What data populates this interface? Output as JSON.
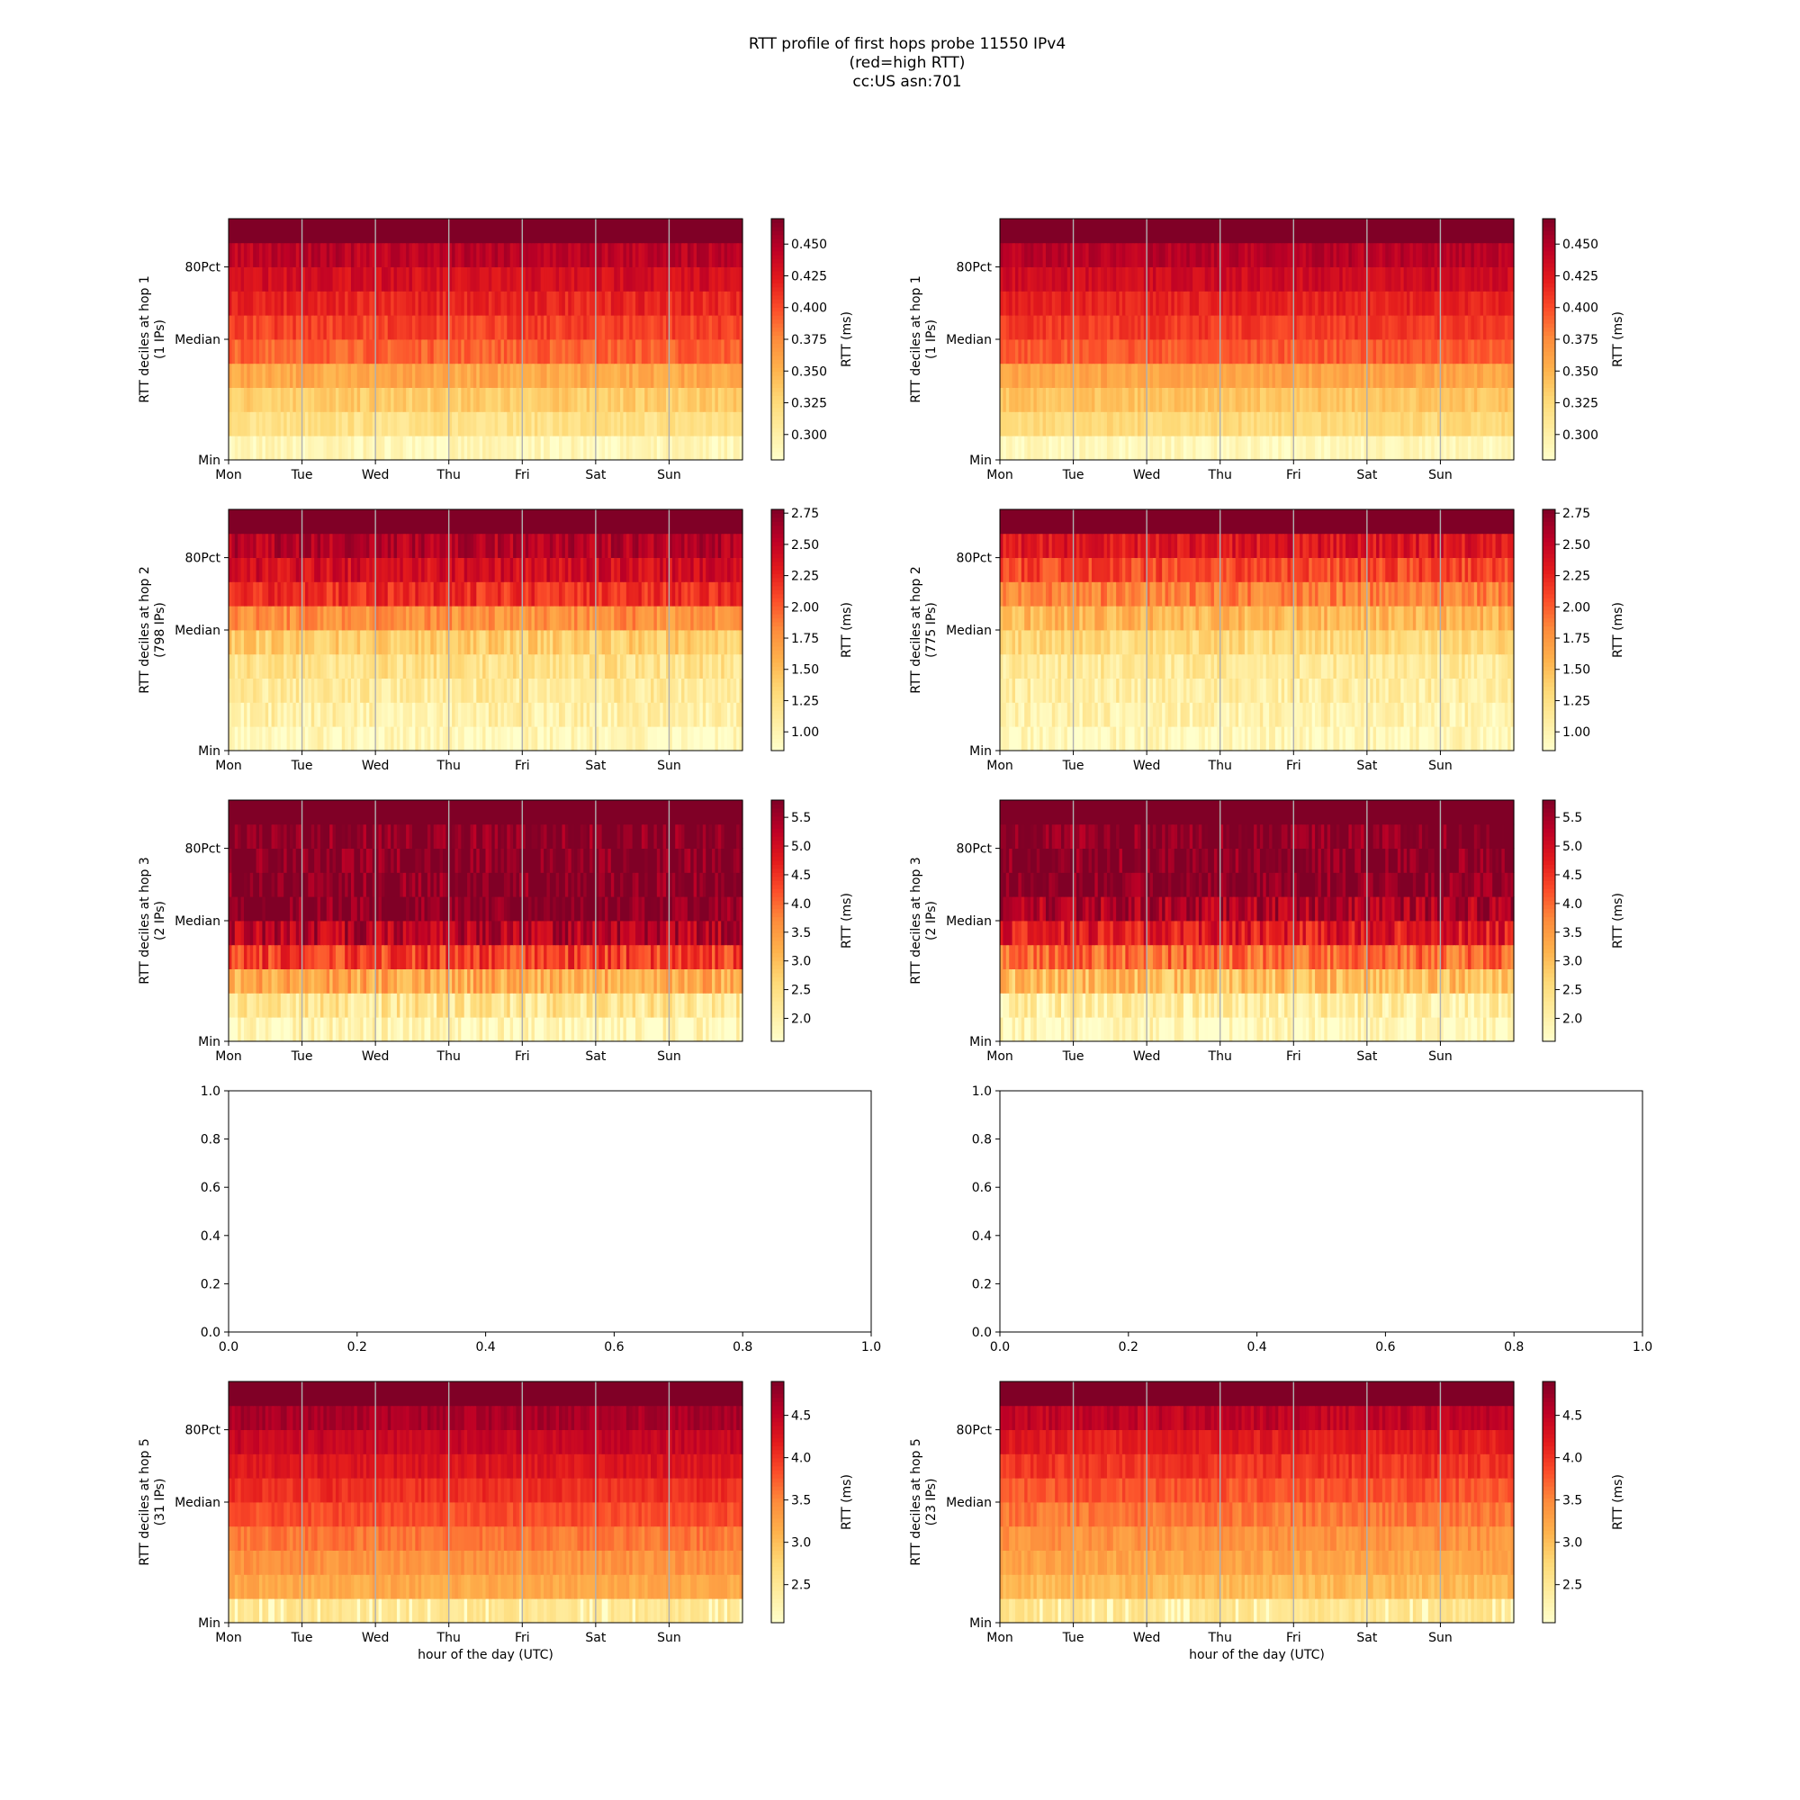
{
  "figure": {
    "title_lines": [
      "RTT profile of first hops probe 11550 IPv4",
      "(red=high RTT)",
      "cc:US asn:701"
    ]
  },
  "chart_data": [
    {
      "type": "heatmap",
      "panel": "hop1-left",
      "ylabel_lines": [
        "RTT deciles at hop 1",
        "(1 IPs)"
      ],
      "yticks": [
        "Min",
        "Median",
        "80Pct"
      ],
      "xticks": [
        "Mon",
        "Tue",
        "Wed",
        "Thu",
        "Fri",
        "Sat",
        "Sun"
      ],
      "xlabel": "",
      "colorbar": {
        "label": "RTT (ms)",
        "min": 0.28,
        "max": 0.47,
        "ticks": [
          "0.300",
          "0.325",
          "0.350",
          "0.375",
          "0.400",
          "0.425",
          "0.450"
        ],
        "tick_values": [
          0.3,
          0.325,
          0.35,
          0.375,
          0.4,
          0.425,
          0.45
        ]
      },
      "decile_rtt": [
        0.292,
        0.318,
        0.335,
        0.358,
        0.392,
        0.405,
        0.418,
        0.432,
        0.445,
        0.47
      ],
      "variability": 0.012
    },
    {
      "type": "heatmap",
      "panel": "hop1-right",
      "ylabel_lines": [
        "RTT deciles at hop 1",
        "(1 IPs)"
      ],
      "yticks": [
        "Min",
        "Median",
        "80Pct"
      ],
      "xticks": [
        "Mon",
        "Tue",
        "Wed",
        "Thu",
        "Fri",
        "Sat",
        "Sun"
      ],
      "xlabel": "",
      "colorbar": {
        "label": "RTT (ms)",
        "min": 0.28,
        "max": 0.47,
        "ticks": [
          "0.300",
          "0.325",
          "0.350",
          "0.375",
          "0.400",
          "0.425",
          "0.450"
        ],
        "tick_values": [
          0.3,
          0.325,
          0.35,
          0.375,
          0.4,
          0.425,
          0.45
        ]
      },
      "decile_rtt": [
        0.292,
        0.325,
        0.34,
        0.36,
        0.395,
        0.408,
        0.42,
        0.435,
        0.447,
        0.47
      ],
      "variability": 0.01
    },
    {
      "type": "heatmap",
      "panel": "hop2-left",
      "ylabel_lines": [
        "RTT deciles at hop 2",
        "(798 IPs)"
      ],
      "yticks": [
        "Min",
        "Median",
        "80Pct"
      ],
      "xticks": [
        "Mon",
        "Tue",
        "Wed",
        "Thu",
        "Fri",
        "Sat",
        "Sun"
      ],
      "xlabel": "",
      "colorbar": {
        "label": "RTT (ms)",
        "min": 0.85,
        "max": 2.78,
        "ticks": [
          "1.00",
          "1.25",
          "1.50",
          "1.75",
          "2.00",
          "2.25",
          "2.50",
          "2.75"
        ],
        "tick_values": [
          1.0,
          1.25,
          1.5,
          1.75,
          2.0,
          2.25,
          2.5,
          2.75
        ]
      },
      "decile_rtt": [
        0.95,
        1.05,
        1.12,
        1.22,
        1.4,
        1.78,
        2.2,
        2.4,
        2.55,
        2.78
      ],
      "variability": 0.18
    },
    {
      "type": "heatmap",
      "panel": "hop2-right",
      "ylabel_lines": [
        "RTT deciles at hop 2",
        "(775 IPs)"
      ],
      "yticks": [
        "Min",
        "Median",
        "80Pct"
      ],
      "xticks": [
        "Mon",
        "Tue",
        "Wed",
        "Thu",
        "Fri",
        "Sat",
        "Sun"
      ],
      "xlabel": "",
      "colorbar": {
        "label": "RTT (ms)",
        "min": 0.85,
        "max": 2.78,
        "ticks": [
          "1.00",
          "1.25",
          "1.50",
          "1.75",
          "2.00",
          "2.25",
          "2.50",
          "2.75"
        ],
        "tick_values": [
          1.0,
          1.25,
          1.5,
          1.75,
          2.0,
          2.25,
          2.5,
          2.75
        ]
      },
      "decile_rtt": [
        0.95,
        1.02,
        1.08,
        1.15,
        1.3,
        1.55,
        1.85,
        2.1,
        2.35,
        2.78
      ],
      "variability": 0.18
    },
    {
      "type": "heatmap",
      "panel": "hop3-left",
      "ylabel_lines": [
        "RTT deciles at hop 3",
        "(2 IPs)"
      ],
      "yticks": [
        "Min",
        "Median",
        "80Pct"
      ],
      "xticks": [
        "Mon",
        "Tue",
        "Wed",
        "Thu",
        "Fri",
        "Sat",
        "Sun"
      ],
      "xlabel": "",
      "colorbar": {
        "label": "RTT (ms)",
        "min": 1.6,
        "max": 5.8,
        "ticks": [
          "2.0",
          "2.5",
          "3.0",
          "3.5",
          "4.0",
          "4.5",
          "5.0",
          "5.5"
        ],
        "tick_values": [
          2.0,
          2.5,
          3.0,
          3.5,
          4.0,
          4.5,
          5.0,
          5.5
        ]
      },
      "decile_rtt": [
        1.8,
        2.3,
        3.3,
        4.4,
        5.3,
        5.8,
        5.8,
        5.8,
        5.8,
        5.8
      ],
      "variability": 0.55
    },
    {
      "type": "heatmap",
      "panel": "hop3-right",
      "ylabel_lines": [
        "RTT deciles at hop 3",
        "(2 IPs)"
      ],
      "yticks": [
        "Min",
        "Median",
        "80Pct"
      ],
      "xticks": [
        "Mon",
        "Tue",
        "Wed",
        "Thu",
        "Fri",
        "Sat",
        "Sun"
      ],
      "xlabel": "",
      "colorbar": {
        "label": "RTT (ms)",
        "min": 1.6,
        "max": 5.8,
        "ticks": [
          "2.0",
          "2.5",
          "3.0",
          "3.5",
          "4.0",
          "4.5",
          "5.0",
          "5.5"
        ],
        "tick_values": [
          2.0,
          2.5,
          3.0,
          3.5,
          4.0,
          4.5,
          5.0,
          5.5
        ]
      },
      "decile_rtt": [
        1.8,
        2.1,
        3.0,
        4.0,
        4.8,
        5.4,
        5.8,
        5.8,
        5.8,
        5.8
      ],
      "variability": 0.55
    },
    {
      "type": "empty",
      "panel": "hop4-left",
      "xlim": [
        0,
        1
      ],
      "ylim": [
        0,
        1
      ],
      "xticks": [
        "0.0",
        "0.2",
        "0.4",
        "0.6",
        "0.8",
        "1.0"
      ],
      "yticks": [
        "0.0",
        "0.2",
        "0.4",
        "0.6",
        "0.8",
        "1.0"
      ]
    },
    {
      "type": "empty",
      "panel": "hop4-right",
      "xlim": [
        0,
        1
      ],
      "ylim": [
        0,
        1
      ],
      "xticks": [
        "0.0",
        "0.2",
        "0.4",
        "0.6",
        "0.8",
        "1.0"
      ],
      "yticks": [
        "0.0",
        "0.2",
        "0.4",
        "0.6",
        "0.8",
        "1.0"
      ]
    },
    {
      "type": "heatmap",
      "panel": "hop5-left",
      "ylabel_lines": [
        "RTT deciles at hop 5",
        "(31 IPs)"
      ],
      "yticks": [
        "Min",
        "Median",
        "80Pct"
      ],
      "xticks": [
        "Mon",
        "Tue",
        "Wed",
        "Thu",
        "Fri",
        "Sat",
        "Sun"
      ],
      "xlabel": "hour of the day (UTC)",
      "colorbar": {
        "label": "RTT (ms)",
        "min": 2.05,
        "max": 4.9,
        "ticks": [
          "2.5",
          "3.0",
          "3.5",
          "4.0",
          "4.5"
        ],
        "tick_values": [
          2.5,
          3.0,
          3.5,
          4.0,
          4.5
        ]
      },
      "decile_rtt": [
        2.55,
        3.2,
        3.4,
        3.6,
        3.85,
        4.05,
        4.25,
        4.45,
        4.65,
        4.9
      ],
      "variability": 0.14
    },
    {
      "type": "heatmap",
      "panel": "hop5-right",
      "ylabel_lines": [
        "RTT deciles at hop 5",
        "(23 IPs)"
      ],
      "yticks": [
        "Min",
        "Median",
        "80Pct"
      ],
      "xticks": [
        "Mon",
        "Tue",
        "Wed",
        "Thu",
        "Fri",
        "Sat",
        "Sun"
      ],
      "xlabel": "hour of the day (UTC)",
      "colorbar": {
        "label": "RTT (ms)",
        "min": 2.05,
        "max": 4.9,
        "ticks": [
          "2.5",
          "3.0",
          "3.5",
          "4.0",
          "4.5"
        ],
        "tick_values": [
          2.5,
          3.0,
          3.5,
          4.0,
          4.5
        ]
      },
      "decile_rtt": [
        2.55,
        3.05,
        3.25,
        3.4,
        3.6,
        3.8,
        4.0,
        4.2,
        4.5,
        4.9
      ],
      "variability": 0.16
    }
  ]
}
